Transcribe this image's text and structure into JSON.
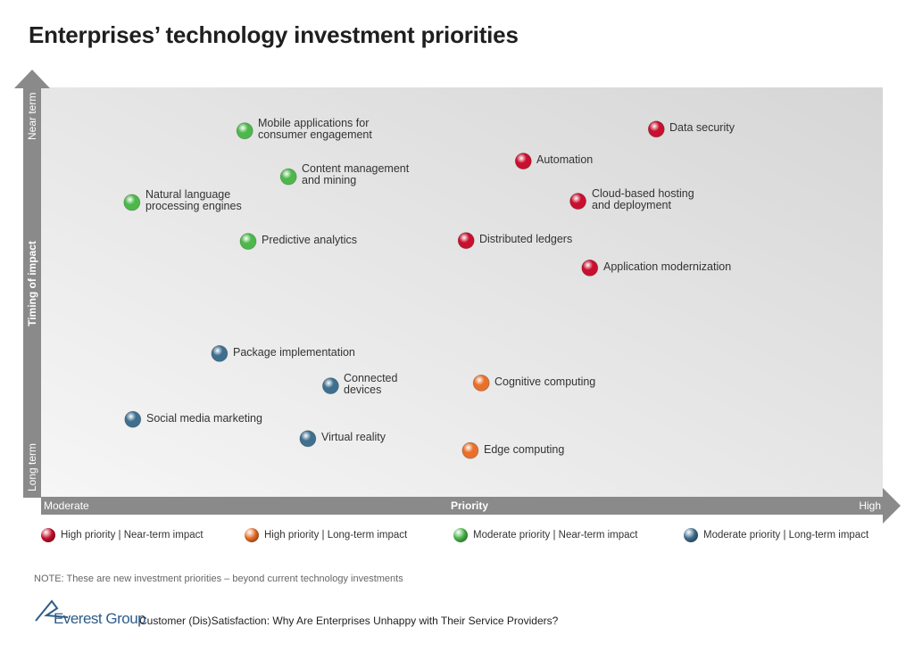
{
  "title": "Enterprises’ technology investment priorities",
  "colors": {
    "high_near": "#c8102e",
    "high_long": "#e8702a",
    "moderate_near": "#4cb84a",
    "moderate_long": "#3f6f8e",
    "axis": "#8a8a8a",
    "plot_bg_light": "#f4f4f4",
    "plot_bg_dark": "#d9d9d9"
  },
  "chart_data": {
    "type": "scatter",
    "title": "Enterprises’ technology investment priorities",
    "xlabel": "Priority",
    "ylabel": "Timing of impact",
    "x_ticks": {
      "low": "Moderate",
      "high": "High"
    },
    "y_ticks": {
      "low": "Long term",
      "high": "Near term"
    },
    "xlim": [
      0,
      100
    ],
    "ylim": [
      0,
      100
    ],
    "categories": [
      {
        "key": "high_near",
        "label": "High priority | Near-term impact"
      },
      {
        "key": "high_long",
        "label": "High priority | Long-term impact"
      },
      {
        "key": "moderate_near",
        "label": "Moderate priority | Near-term impact"
      },
      {
        "key": "moderate_long",
        "label": "Moderate priority | Long-term impact"
      }
    ],
    "points": [
      {
        "label": [
          "Data security"
        ],
        "x": 73.1,
        "y": 89.8,
        "category": "high_near"
      },
      {
        "label": [
          "Automation"
        ],
        "x": 57.3,
        "y": 82.0,
        "category": "high_near"
      },
      {
        "label": [
          "Cloud-based hosting",
          "and deployment"
        ],
        "x": 63.8,
        "y": 72.2,
        "category": "high_near"
      },
      {
        "label": [
          "Distributed ledgers"
        ],
        "x": 50.5,
        "y": 62.6,
        "category": "high_near"
      },
      {
        "label": [
          "Application modernization"
        ],
        "x": 65.2,
        "y": 55.9,
        "category": "high_near"
      },
      {
        "label": [
          "Mobile applications for",
          "consumer engagement"
        ],
        "x": 24.2,
        "y": 89.4,
        "category": "moderate_near"
      },
      {
        "label": [
          "Content management",
          "and mining"
        ],
        "x": 29.4,
        "y": 78.2,
        "category": "moderate_near"
      },
      {
        "label": [
          "Natural language",
          "processing engines"
        ],
        "x": 10.8,
        "y": 71.9,
        "category": "moderate_near"
      },
      {
        "label": [
          "Predictive analytics"
        ],
        "x": 24.6,
        "y": 62.4,
        "category": "moderate_near"
      },
      {
        "label": [
          "Package implementation"
        ],
        "x": 21.2,
        "y": 35.0,
        "category": "moderate_long"
      },
      {
        "label": [
          "Connected",
          "devices"
        ],
        "x": 34.4,
        "y": 27.1,
        "category": "moderate_long"
      },
      {
        "label": [
          "Social media marketing"
        ],
        "x": 10.9,
        "y": 18.9,
        "category": "moderate_long"
      },
      {
        "label": [
          "Virtual reality"
        ],
        "x": 31.7,
        "y": 14.2,
        "category": "moderate_long"
      },
      {
        "label": [
          "Cognitive computing"
        ],
        "x": 52.3,
        "y": 27.8,
        "category": "high_long"
      },
      {
        "label": [
          "Edge computing"
        ],
        "x": 51.0,
        "y": 11.3,
        "category": "high_long"
      }
    ]
  },
  "legend": [
    {
      "key": "high_near",
      "label": "High priority | Near-term impact"
    },
    {
      "key": "high_long",
      "label": "High priority | Long-term impact"
    },
    {
      "key": "moderate_near",
      "label": "Moderate priority | Near-term impact"
    },
    {
      "key": "moderate_long",
      "label": "Moderate priority | Long-term impact"
    }
  ],
  "note": "NOTE: These are new investment priorities – beyond current technology investments",
  "footer": {
    "brand": "Everest Group",
    "text": "Customer (Dis)Satisfaction: Why Are Enterprises Unhappy with Their Service Providers?"
  }
}
